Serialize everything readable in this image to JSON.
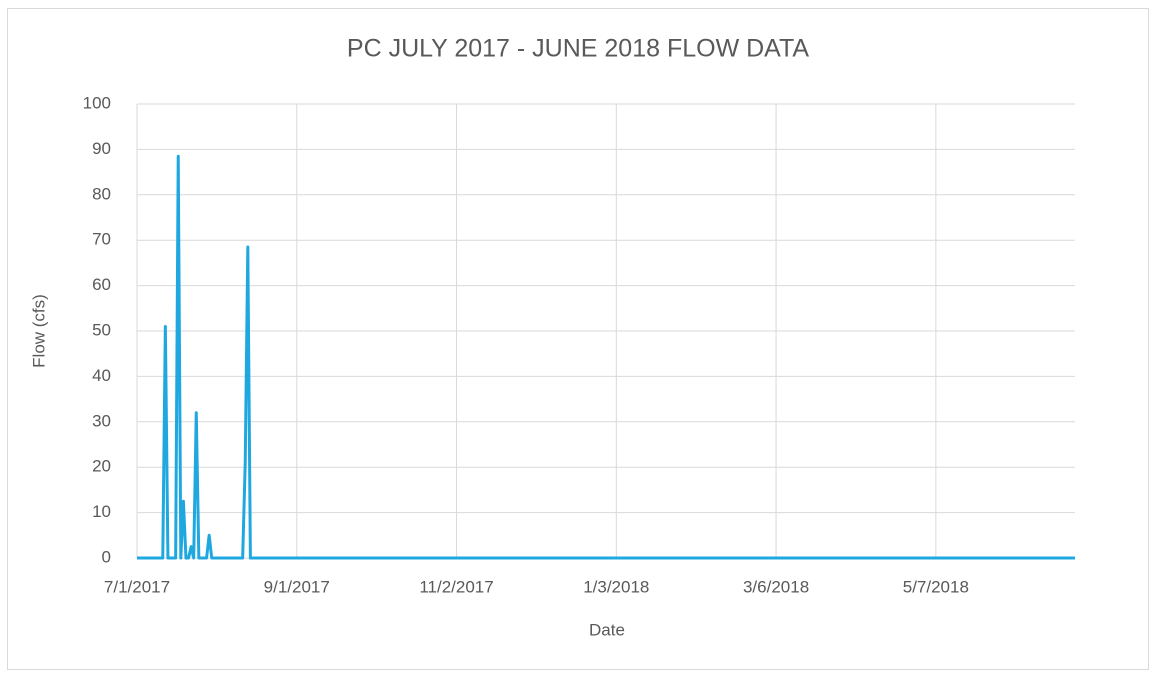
{
  "chart_data": {
    "type": "line",
    "title": "PC JULY 2017 - JUNE 2018 FLOW DATA",
    "x_label": "Date",
    "y_label": "Flow (cfs)",
    "x": [
      "7/1/2017",
      "7/11/2017",
      "7/12/2017",
      "7/13/2017",
      "7/16/2017",
      "7/17/2017",
      "7/18/2017",
      "7/19/2017",
      "7/20/2017",
      "7/21/2017",
      "7/22/2017",
      "7/23/2017",
      "7/24/2017",
      "7/25/2017",
      "7/28/2017",
      "7/29/2017",
      "7/30/2017",
      "8/11/2017",
      "8/12/2017",
      "8/13/2017",
      "8/14/2017",
      "6/30/2018"
    ],
    "series": [
      {
        "name": "Flow (cfs)",
        "color": "#1fa8e0",
        "values": [
          0,
          0,
          51,
          0,
          0,
          88.5,
          0,
          12.5,
          0,
          0,
          2.5,
          0,
          32,
          0,
          0,
          5,
          0,
          0,
          21,
          68.5,
          0,
          0
        ]
      }
    ],
    "xlim": [
      "7/1/2017",
      "6/30/2018"
    ],
    "xticks": [
      "7/1/2017",
      "9/1/2017",
      "11/2/2017",
      "1/3/2018",
      "3/6/2018",
      "5/7/2018"
    ],
    "ylim": [
      0,
      100
    ],
    "yticks": [
      0,
      10,
      20,
      30,
      40,
      50,
      60,
      70,
      80,
      90,
      100
    ],
    "grid": true
  }
}
